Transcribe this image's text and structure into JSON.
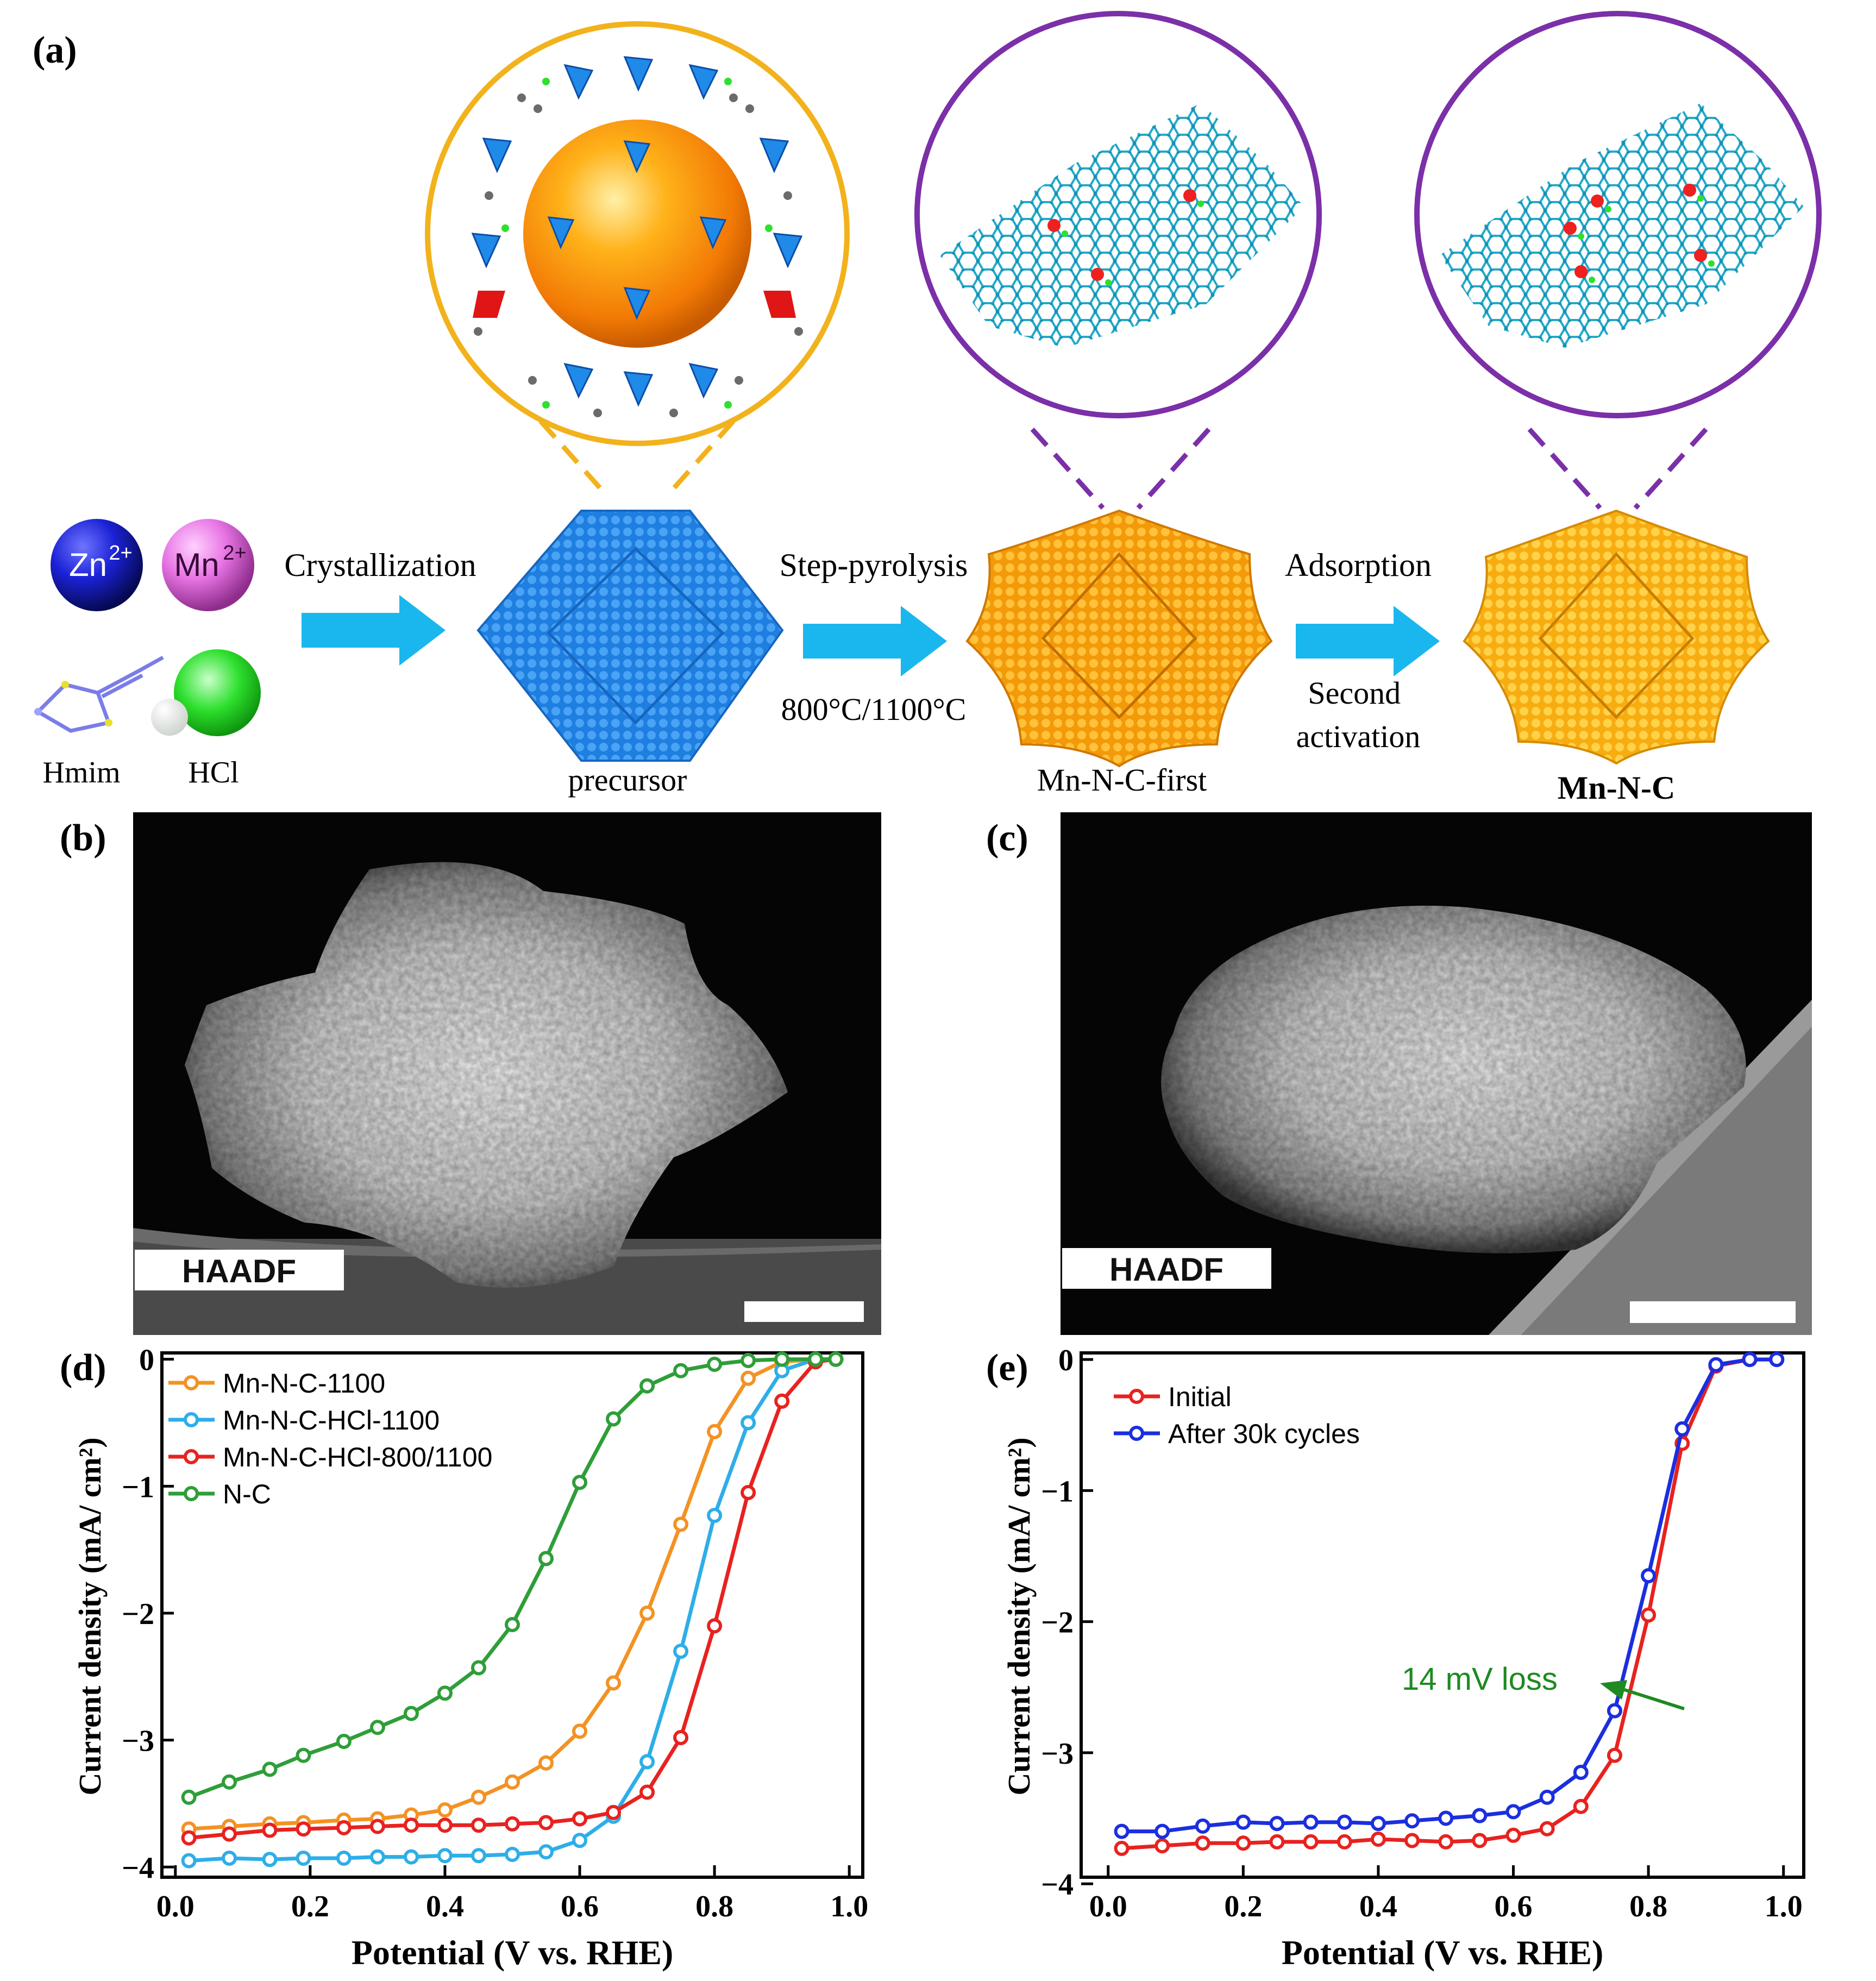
{
  "panels": {
    "a": "(a)",
    "b": "(b)",
    "c": "(c)",
    "d": "(d)",
    "e": "(e)"
  },
  "scheme": {
    "ions": {
      "zn": "Zn",
      "zn_charge": "2+",
      "mn": "Mn",
      "mn_charge": "2+"
    },
    "reagents": {
      "hmim": "Hmim",
      "hcl": "HCl"
    },
    "steps": [
      {
        "label": "Crystallization",
        "sublabel": ""
      },
      {
        "label": "Step-pyrolysis",
        "sublabel": "800°C/1100°C"
      },
      {
        "label": "Adsorption",
        "sublabel": "Second activation"
      }
    ],
    "step3_sub_lines": [
      "Second",
      "activation"
    ],
    "products": [
      "precursor",
      "Mn-N-C-first",
      "Mn-N-C"
    ],
    "colors": {
      "arrow": "#19b7ee",
      "precursor": "#1f7fe0",
      "product": "#f7a30c",
      "zif_circle": "#f2b21c",
      "carbon_circle": "#7b2fa8",
      "lattice": "#22a9c9"
    }
  },
  "micrographs": [
    {
      "label": "HAADF"
    },
    {
      "label": "HAADF"
    }
  ],
  "chart_data": [
    {
      "type": "line",
      "panel": "(d)",
      "xlabel": "Potential (V vs. RHE)",
      "ylabel": "Current density (mA/ cm²)",
      "xlim": [
        -0.02,
        1.02
      ],
      "ylim": [
        -4.08,
        0.05
      ],
      "xticks": [
        0.0,
        0.2,
        0.4,
        0.6,
        0.8,
        1.0
      ],
      "xtick_labels": [
        "0.0",
        "0.2",
        "0.4",
        "0.6",
        "0.8",
        "1.0"
      ],
      "yticks": [
        0,
        -1,
        -2,
        -3,
        -4
      ],
      "ytick_labels": [
        "0",
        "−1",
        "−2",
        "−3",
        "−4"
      ],
      "legend_position": "top-left",
      "series": [
        {
          "name": "Mn-N-C-1100",
          "color": "#f39224",
          "x": [
            0.02,
            0.08,
            0.14,
            0.19,
            0.25,
            0.3,
            0.35,
            0.4,
            0.45,
            0.5,
            0.55,
            0.6,
            0.65,
            0.7,
            0.75,
            0.8,
            0.85,
            0.9,
            0.95,
            0.98
          ],
          "y": [
            -3.7,
            -3.68,
            -3.66,
            -3.65,
            -3.63,
            -3.62,
            -3.59,
            -3.55,
            -3.45,
            -3.33,
            -3.18,
            -2.93,
            -2.55,
            -2.0,
            -1.3,
            -0.57,
            -0.15,
            -0.02,
            0.0,
            0.0
          ]
        },
        {
          "name": "Mn-N-C-HCl-1100",
          "color": "#2eaee8",
          "x": [
            0.02,
            0.08,
            0.14,
            0.19,
            0.25,
            0.3,
            0.35,
            0.4,
            0.45,
            0.5,
            0.55,
            0.6,
            0.65,
            0.7,
            0.75,
            0.8,
            0.85,
            0.9,
            0.95,
            0.98
          ],
          "y": [
            -3.95,
            -3.93,
            -3.94,
            -3.93,
            -3.93,
            -3.92,
            -3.92,
            -3.91,
            -3.91,
            -3.9,
            -3.88,
            -3.79,
            -3.6,
            -3.17,
            -2.3,
            -1.23,
            -0.5,
            -0.09,
            0.0,
            0.0
          ]
        },
        {
          "name": "Mn-N-C-HCl-800/1100",
          "color": "#e8221f",
          "x": [
            0.02,
            0.08,
            0.14,
            0.19,
            0.25,
            0.3,
            0.35,
            0.4,
            0.45,
            0.5,
            0.55,
            0.6,
            0.65,
            0.7,
            0.75,
            0.8,
            0.85,
            0.9,
            0.95,
            0.98
          ],
          "y": [
            -3.77,
            -3.74,
            -3.71,
            -3.7,
            -3.69,
            -3.68,
            -3.67,
            -3.67,
            -3.67,
            -3.66,
            -3.65,
            -3.62,
            -3.57,
            -3.41,
            -2.98,
            -2.1,
            -1.05,
            -0.33,
            -0.02,
            0.0
          ]
        },
        {
          "name": "N-C",
          "color": "#2f9e39",
          "x": [
            0.02,
            0.08,
            0.14,
            0.19,
            0.25,
            0.3,
            0.35,
            0.4,
            0.45,
            0.5,
            0.55,
            0.6,
            0.65,
            0.7,
            0.75,
            0.8,
            0.85,
            0.9,
            0.95,
            0.98
          ],
          "y": [
            -3.45,
            -3.33,
            -3.23,
            -3.12,
            -3.01,
            -2.9,
            -2.79,
            -2.63,
            -2.43,
            -2.09,
            -1.57,
            -0.97,
            -0.47,
            -0.21,
            -0.09,
            -0.04,
            -0.01,
            0.0,
            0.0,
            0.0
          ]
        }
      ]
    },
    {
      "type": "line",
      "panel": "(e)",
      "xlabel": "Potential (V vs. RHE)",
      "ylabel": "Current density (mA/ cm²)",
      "xlim": [
        -0.04,
        1.03
      ],
      "ylim": [
        -3.95,
        0.05
      ],
      "xticks": [
        0.0,
        0.2,
        0.4,
        0.6,
        0.8,
        1.0
      ],
      "xtick_labels": [
        "0.0",
        "0.2",
        "0.4",
        "0.6",
        "0.8",
        "1.0"
      ],
      "yticks": [
        0,
        -1,
        -2,
        -3,
        -4
      ],
      "ytick_labels": [
        "0",
        "−1",
        "−2",
        "−3",
        "−4"
      ],
      "legend_position": "top-left",
      "annotation": "14 mV loss",
      "annotation_color": "#1e8a21",
      "series": [
        {
          "name": "Initial",
          "color": "#e8221f",
          "x": [
            0.02,
            0.08,
            0.14,
            0.2,
            0.25,
            0.3,
            0.35,
            0.4,
            0.45,
            0.5,
            0.55,
            0.6,
            0.65,
            0.7,
            0.75,
            0.8,
            0.85,
            0.9,
            0.95,
            0.99
          ],
          "y": [
            -3.73,
            -3.71,
            -3.69,
            -3.69,
            -3.68,
            -3.68,
            -3.68,
            -3.66,
            -3.67,
            -3.68,
            -3.67,
            -3.63,
            -3.58,
            -3.41,
            -3.02,
            -1.95,
            -0.64,
            -0.05,
            0.0,
            0.0
          ]
        },
        {
          "name": "After 30k cycles",
          "color": "#1b2ee0",
          "x": [
            0.02,
            0.08,
            0.14,
            0.2,
            0.25,
            0.3,
            0.35,
            0.4,
            0.45,
            0.5,
            0.55,
            0.6,
            0.65,
            0.7,
            0.75,
            0.8,
            0.85,
            0.9,
            0.95,
            0.99
          ],
          "y": [
            -3.6,
            -3.6,
            -3.56,
            -3.53,
            -3.54,
            -3.53,
            -3.53,
            -3.54,
            -3.52,
            -3.5,
            -3.48,
            -3.45,
            -3.34,
            -3.15,
            -2.68,
            -1.65,
            -0.53,
            -0.04,
            0.0,
            0.0
          ]
        }
      ]
    }
  ]
}
